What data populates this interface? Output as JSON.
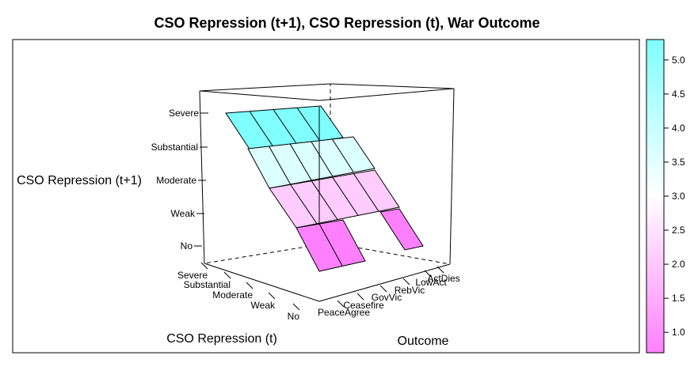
{
  "chart_data": {
    "type": "wireframe-3d-surface",
    "title": "CSO Repression (t+1), CSO Repression (t), War Outcome",
    "zlabel": "CSO Repression (t+1)",
    "xlabel": "CSO Repression (t)",
    "ylabel": "Outcome",
    "z_levels": [
      "No",
      "Weak",
      "Moderate",
      "Substantial",
      "Severe"
    ],
    "x_levels": [
      "No",
      "Weak",
      "Moderate",
      "Substantial",
      "Severe"
    ],
    "y_levels": [
      "PeaceAgree",
      "Ceasefire",
      "GovVic",
      "RebVic",
      "LowAct",
      "ActDies"
    ],
    "colorbar": {
      "range": [
        0.7,
        5.3
      ],
      "ticks": [
        "1.0",
        "1.5",
        "2.0",
        "2.5",
        "3.0",
        "3.5",
        "4.0",
        "4.5",
        "5.0"
      ],
      "low_color": "#ff80ff",
      "mid_color": "#ffffff",
      "high_color": "#80ffff"
    },
    "surface_note_values": {
      "rows": [
        "Severe",
        "Substantial",
        "Moderate",
        "Weak",
        "No"
      ],
      "visible_cells_per_row": [
        4,
        5,
        5,
        5,
        2
      ]
    }
  }
}
